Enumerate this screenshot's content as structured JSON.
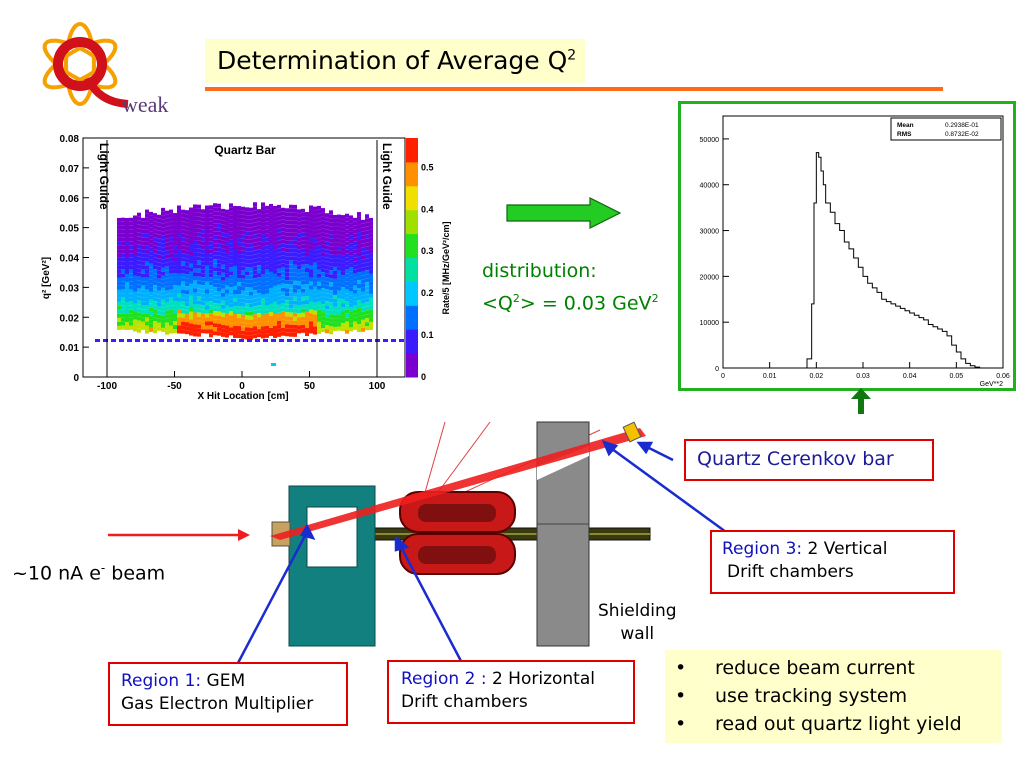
{
  "title": {
    "text": "Determination of Average Q",
    "sup": "2"
  },
  "logo": {
    "text": "weak"
  },
  "left_plot": {
    "title": "Quartz  Bar",
    "xlabel": "X Hit Location    [cm]",
    "ylabel": "q² [GeV²]",
    "guide_left": "Light Guide",
    "guide_right": "Light Guide",
    "colorbar_label": "Rate/5 [MHz/GeV²/cm]",
    "x_ticks": [
      "-100",
      "-50",
      "0",
      "50",
      "100"
    ],
    "y_ticks": [
      "0",
      "0.01",
      "0.02",
      "0.03",
      "0.04",
      "0.05",
      "0.06",
      "0.07",
      "0.08"
    ],
    "z_ticks": [
      "0",
      "0.1",
      "0.2",
      "0.3",
      "0.4",
      "0.5"
    ]
  },
  "distribution": {
    "line1": "distribution:",
    "line2_pre": "<Q",
    "line2_sup1": "2",
    "line2_mid": "> = 0.03 GeV",
    "line2_sup2": "2"
  },
  "chart_data": {
    "type": "line",
    "title": "",
    "xlabel": "GeV**2",
    "ylabel": "",
    "xlim": [
      0,
      0.06
    ],
    "ylim": [
      0,
      55000
    ],
    "x_ticks": [
      "0",
      "0.01",
      "0.02",
      "0.03",
      "0.04",
      "0.05",
      "0.06"
    ],
    "y_ticks": [
      "0",
      "10000",
      "20000",
      "30000",
      "40000",
      "50000"
    ],
    "stats": [
      {
        "label": "Mean",
        "value": "0.2938E-01"
      },
      {
        "label": "RMS",
        "value": "0.8732E-02"
      }
    ],
    "x": [
      0.0,
      0.017,
      0.018,
      0.019,
      0.0195,
      0.02,
      0.0205,
      0.021,
      0.0215,
      0.022,
      0.023,
      0.024,
      0.025,
      0.026,
      0.027,
      0.028,
      0.029,
      0.03,
      0.031,
      0.032,
      0.033,
      0.034,
      0.035,
      0.036,
      0.037,
      0.038,
      0.039,
      0.04,
      0.041,
      0.042,
      0.043,
      0.044,
      0.045,
      0.046,
      0.047,
      0.048,
      0.049,
      0.05,
      0.051,
      0.052,
      0.053,
      0.054,
      0.055,
      0.056,
      0.06
    ],
    "y": [
      0,
      0,
      2000,
      14000,
      36000,
      47000,
      46000,
      43000,
      40000,
      36000,
      34000,
      31500,
      30000,
      27500,
      26000,
      24000,
      22000,
      20000,
      18500,
      17500,
      16500,
      15000,
      14500,
      14000,
      13500,
      13000,
      12500,
      12000,
      11500,
      11000,
      10500,
      9500,
      9000,
      8500,
      8000,
      7000,
      5000,
      3500,
      2000,
      1000,
      500,
      200,
      0,
      0,
      0
    ]
  },
  "quartz_label": "Quartz Cerenkov bar",
  "region3": {
    "name": "Region 3:",
    "desc1": " 2 Vertical",
    "desc2": "Drift chambers"
  },
  "region1": {
    "name": "Region 1:",
    "desc1": " GEM",
    "desc2": "Gas Electron Multiplier"
  },
  "region2": {
    "name": "Region 2 :",
    "desc1": " 2 Horizontal",
    "desc2": "Drift chambers"
  },
  "beam": {
    "pre": "~10 nA e",
    "sup": "-",
    "post": " beam"
  },
  "shielding": {
    "line1": "Shielding",
    "line2": "wall"
  },
  "bullets": [
    "reduce beam current",
    "use tracking system",
    "read out quartz light yield"
  ],
  "bullet_char": "•",
  "colors": {
    "accent_rule": "#ff6a1a",
    "box_red": "#e00000",
    "frame_green": "#20b020",
    "arrow_blue": "#1a2bd0",
    "region_blue": "#1010c0"
  }
}
